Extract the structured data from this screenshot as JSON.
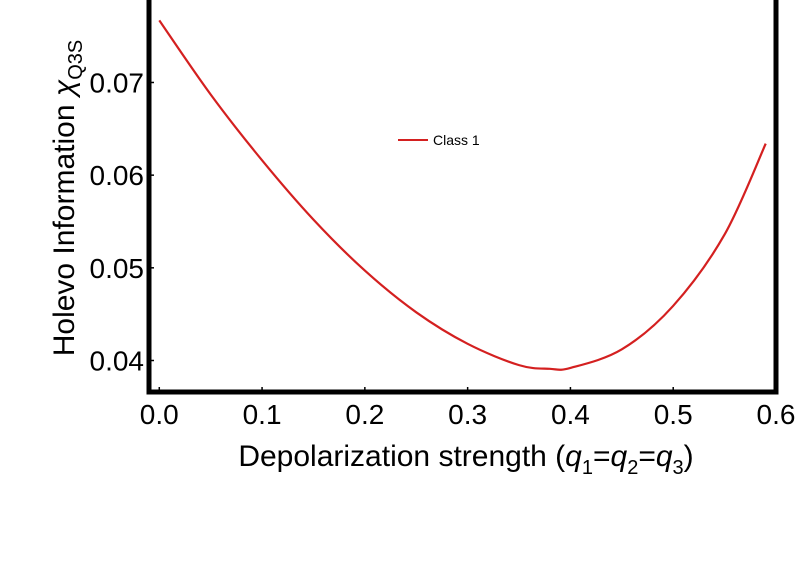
{
  "chart_data": {
    "type": "line",
    "title": "",
    "xlabel": {
      "main": "Depolarization strength (",
      "parts": [
        {
          "base": "q",
          "sub": "1"
        },
        {
          "sep": "="
        },
        {
          "base": "q",
          "sub": "2"
        },
        {
          "sep": "="
        },
        {
          "base": "q",
          "sub": "3"
        }
      ],
      "end": ")"
    },
    "ylabel": {
      "main": "Holevo Information ",
      "symbol": "χ",
      "sub": "Q3S"
    },
    "xlim": [
      -0.01,
      0.6
    ],
    "ylim": [
      0.0366,
      0.0789
    ],
    "x_ticks": [
      0.0,
      0.1,
      0.2,
      0.3,
      0.4,
      0.5,
      0.6
    ],
    "x_tick_labels": [
      "0.0",
      "0.1",
      "0.2",
      "0.3",
      "0.4",
      "0.5",
      "0.6"
    ],
    "y_ticks": [
      0.04,
      0.05,
      0.06,
      0.07
    ],
    "y_tick_labels": [
      "0.04",
      "0.05",
      "0.06",
      "0.07"
    ],
    "grid": false,
    "legend": {
      "position": "top-center",
      "entries": [
        "Class 1"
      ]
    },
    "series": [
      {
        "name": "Class 1",
        "color": "#d42020",
        "x": [
          0.0,
          0.05,
          0.1,
          0.15,
          0.2,
          0.25,
          0.3,
          0.35,
          0.38,
          0.4,
          0.45,
          0.5,
          0.55,
          0.59
        ],
        "y": [
          0.0767,
          0.0687,
          0.0616,
          0.0552,
          0.0497,
          0.0452,
          0.0418,
          0.0395,
          0.0391,
          0.0392,
          0.0412,
          0.0459,
          0.0536,
          0.0634
        ]
      }
    ]
  }
}
